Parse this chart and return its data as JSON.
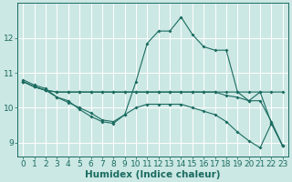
{
  "bg_color": "#cce8e4",
  "line_color": "#1a6b60",
  "grid_white": "#ffffff",
  "grid_pink": "#e8b0b0",
  "xlabel": "Humidex (Indice chaleur)",
  "xlabel_fontsize": 7.5,
  "tick_fontsize": 6.5,
  "xlim": [
    -0.5,
    23.5
  ],
  "ylim": [
    8.6,
    13.0
  ],
  "yticks": [
    9,
    10,
    11,
    12
  ],
  "xticks": [
    0,
    1,
    2,
    3,
    4,
    5,
    6,
    7,
    8,
    9,
    10,
    11,
    12,
    13,
    14,
    15,
    16,
    17,
    18,
    19,
    20,
    21,
    22,
    23
  ],
  "line1_x": [
    0,
    1,
    2,
    3,
    4,
    5,
    6,
    7,
    8,
    9,
    10,
    11,
    12,
    13,
    14,
    15,
    16,
    17,
    18,
    19,
    20,
    21,
    22,
    23
  ],
  "line1_y": [
    10.8,
    10.65,
    10.55,
    10.3,
    10.2,
    9.95,
    9.75,
    9.6,
    9.55,
    9.8,
    10.75,
    11.85,
    12.2,
    12.2,
    12.6,
    12.1,
    11.75,
    11.65,
    11.65,
    10.45,
    10.2,
    10.45,
    9.55,
    8.9
  ],
  "line2_x": [
    0,
    1,
    2,
    3,
    4,
    5,
    6,
    7,
    8,
    9,
    10,
    11,
    12,
    13,
    14,
    15,
    16,
    17,
    18,
    19,
    20,
    21,
    22,
    23
  ],
  "line2_y": [
    10.75,
    10.6,
    10.5,
    10.45,
    10.45,
    10.45,
    10.45,
    10.45,
    10.45,
    10.45,
    10.45,
    10.45,
    10.45,
    10.45,
    10.45,
    10.45,
    10.45,
    10.45,
    10.45,
    10.45,
    10.45,
    10.45,
    10.45,
    10.45
  ],
  "line3_x": [
    0,
    1,
    2,
    3,
    4,
    5,
    6,
    7,
    8,
    9,
    10,
    11,
    12,
    13,
    14,
    15,
    16,
    17,
    18,
    19,
    20,
    21,
    22,
    23
  ],
  "line3_y": [
    10.75,
    10.6,
    10.5,
    10.45,
    10.45,
    10.45,
    10.45,
    10.45,
    10.45,
    10.45,
    10.45,
    10.45,
    10.45,
    10.45,
    10.45,
    10.45,
    10.45,
    10.45,
    10.35,
    10.3,
    10.2,
    10.2,
    9.6,
    8.9
  ],
  "line4_x": [
    0,
    1,
    2,
    3,
    4,
    5,
    6,
    7,
    8,
    9,
    10,
    11,
    12,
    13,
    14,
    15,
    16,
    17,
    18,
    19,
    20,
    21,
    22,
    23
  ],
  "line4_y": [
    10.75,
    10.6,
    10.5,
    10.3,
    10.15,
    10.0,
    9.85,
    9.65,
    9.6,
    9.8,
    10.0,
    10.1,
    10.1,
    10.1,
    10.1,
    10.0,
    9.9,
    9.8,
    9.6,
    9.3,
    9.05,
    8.85,
    9.55,
    8.9
  ]
}
